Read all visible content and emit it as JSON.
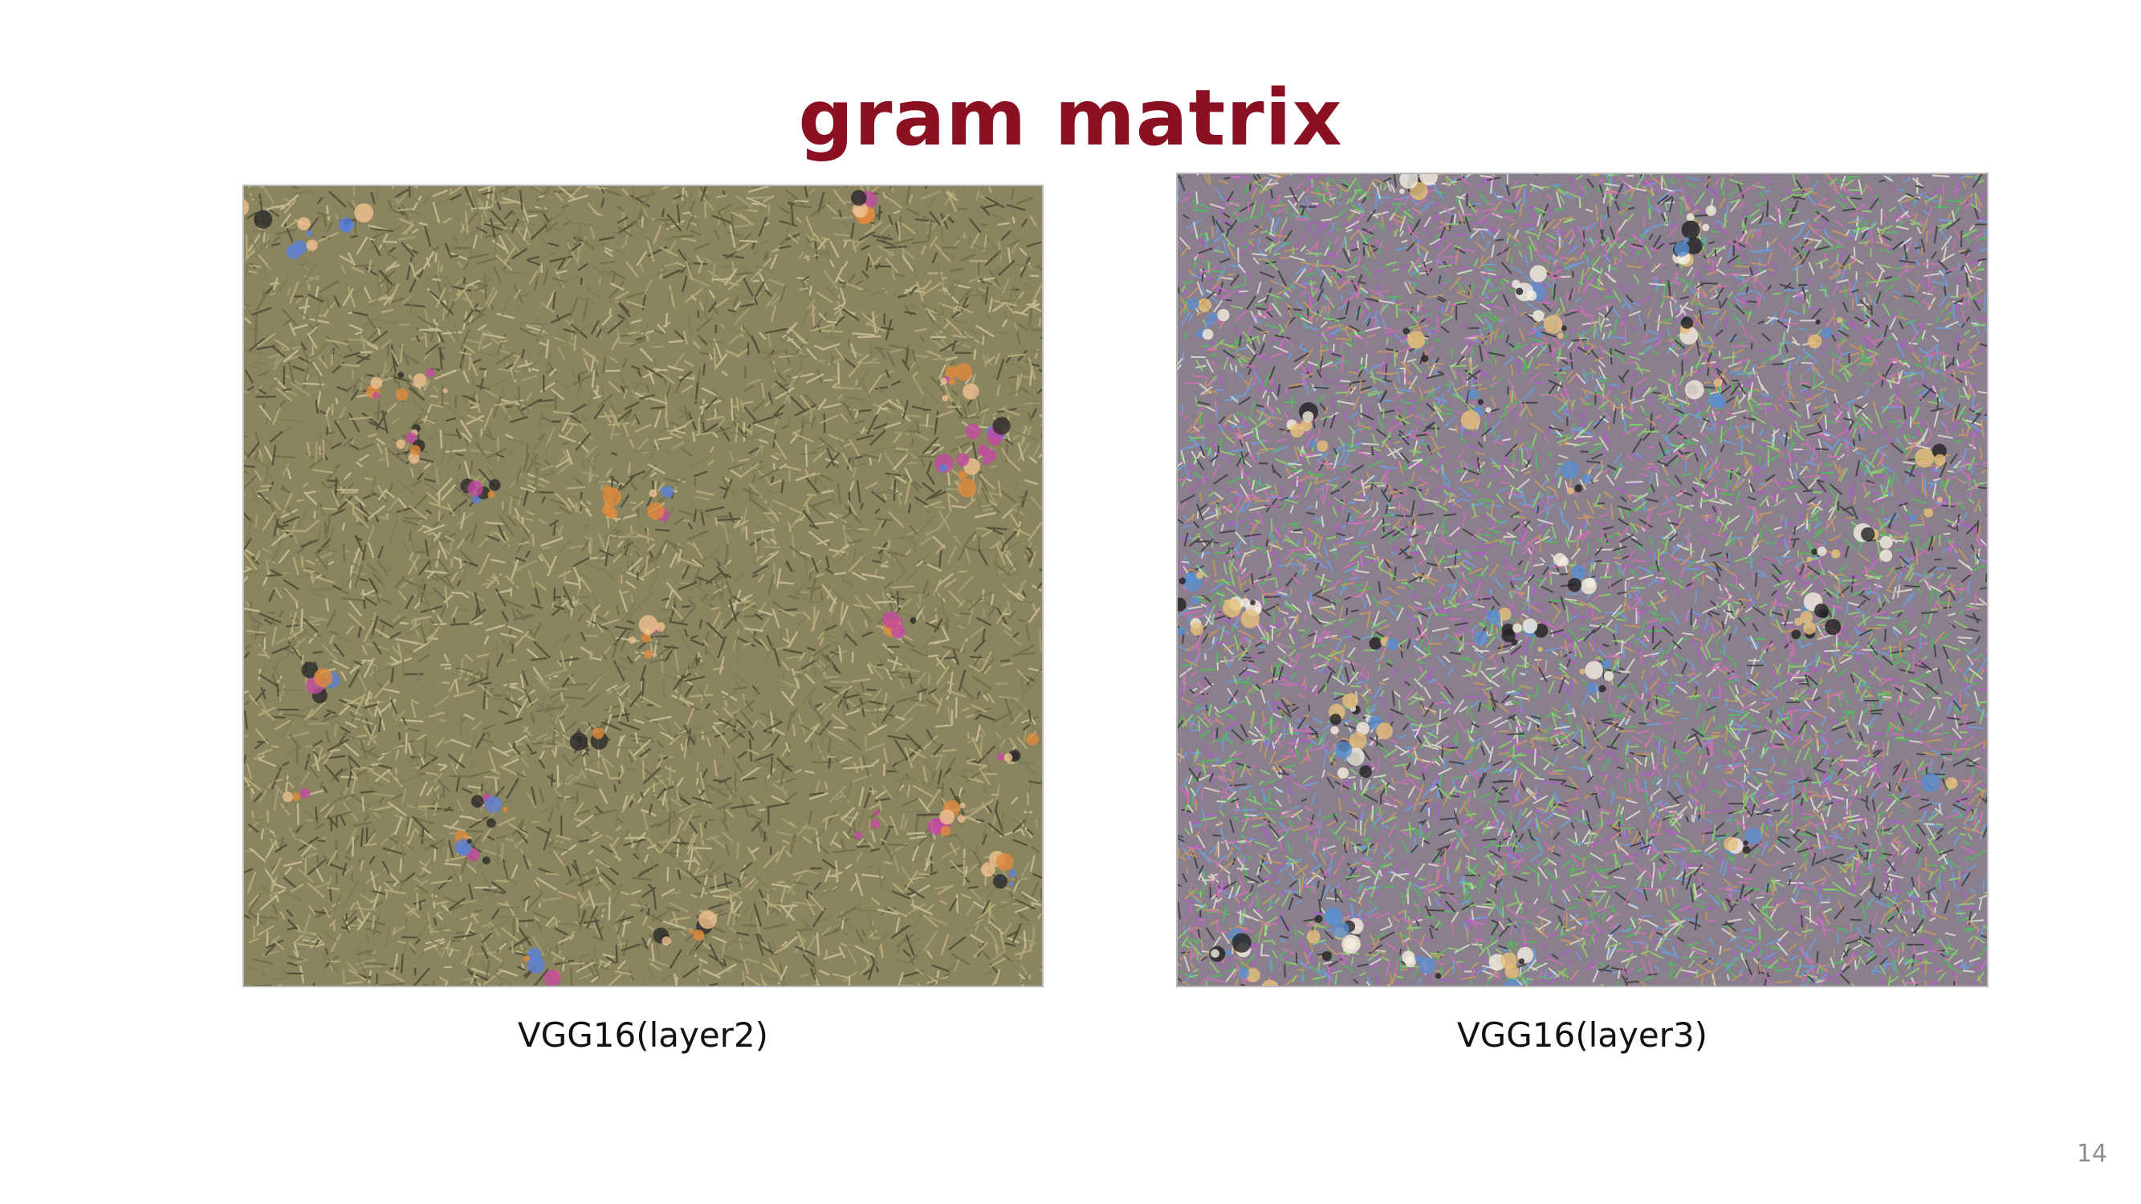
{
  "slide": {
    "title": "gram matrix",
    "page_number": "14",
    "title_color": "#8B1022",
    "figures": [
      {
        "caption": "VGG16(layer2)",
        "texture_base_color": "#8a8560",
        "texture_colors": [
          "#a5a073",
          "#6f6a48",
          "#c9c196",
          "#4b4a36",
          "#b7ae7c",
          "#7d7a57"
        ],
        "blob_colors": [
          "#e08a3c",
          "#5b7fd6",
          "#c24aa0",
          "#2a2a2a",
          "#f0c090"
        ]
      },
      {
        "caption": "VGG16(layer3)",
        "texture_base_color": "#8a7f8c",
        "texture_colors": [
          "#b05acb",
          "#4fbf5a",
          "#6aa0e0",
          "#e0e0d0",
          "#3b3b3b",
          "#c89a60",
          "#8bd46f",
          "#d070b8"
        ],
        "blob_colors": [
          "#f4efe0",
          "#222222",
          "#e6c07a",
          "#5a8fd0"
        ]
      }
    ]
  }
}
